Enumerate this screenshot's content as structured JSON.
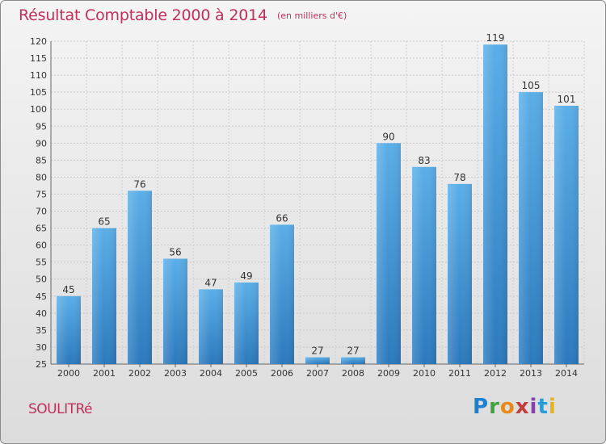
{
  "header": {
    "title": "Résultat Comptable 2000 à 2014",
    "subtitle": "(en milliers d'€)"
  },
  "footer": {
    "town": "SOULITRé",
    "brand_letters": [
      "P",
      "r",
      "o",
      "x",
      "i",
      "t",
      "i"
    ]
  },
  "chart_data": {
    "type": "bar",
    "title": "Résultat Comptable 2000 à 2014",
    "subtitle": "(en milliers d'€)",
    "xlabel": "",
    "ylabel": "",
    "categories": [
      "2000",
      "2001",
      "2002",
      "2003",
      "2004",
      "2005",
      "2006",
      "2007",
      "2008",
      "2009",
      "2010",
      "2011",
      "2012",
      "2013",
      "2014"
    ],
    "values": [
      45,
      65,
      76,
      56,
      47,
      49,
      66,
      27,
      27,
      90,
      83,
      78,
      119,
      105,
      101
    ],
    "ylim": [
      25,
      120
    ],
    "yticks": [
      25,
      30,
      35,
      40,
      45,
      50,
      55,
      60,
      65,
      70,
      75,
      80,
      85,
      90,
      95,
      100,
      105,
      110,
      115,
      120
    ],
    "grid": true,
    "bar_color": "#3f94d8"
  }
}
